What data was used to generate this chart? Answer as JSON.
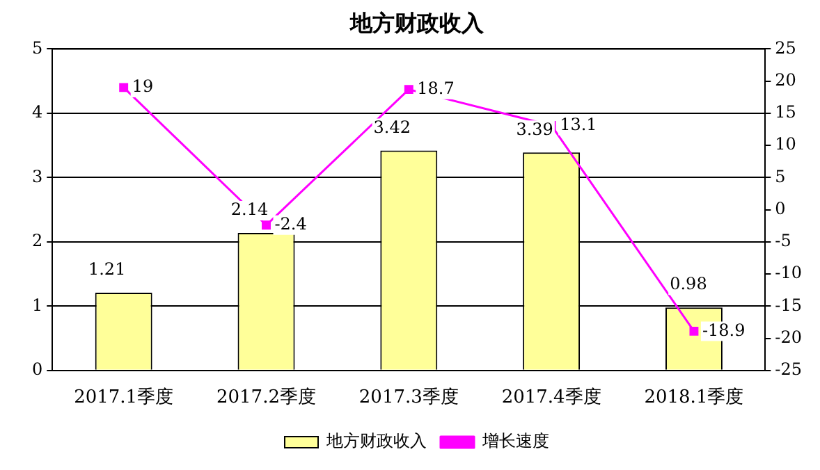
{
  "chart_data": {
    "type": "bar",
    "title": "地方财政收入",
    "categories": [
      "2017.1季度",
      "2017.2季度",
      "2017.3季度",
      "2017.4季度",
      "2018.1季度"
    ],
    "series": [
      {
        "name": "地方财政收入",
        "color": "#ffff99",
        "values": [
          1.21,
          2.14,
          3.42,
          3.39,
          0.98
        ]
      },
      {
        "name": "增长速度",
        "type": "line",
        "axis": "y2",
        "color": "#ff00ff",
        "values": [
          19,
          -2.4,
          18.7,
          13.1,
          -18.9
        ]
      }
    ],
    "ylim": [
      0,
      5
    ],
    "yticks": [
      0,
      1,
      2,
      3,
      4,
      5
    ],
    "y2lim": [
      -25,
      25
    ],
    "y2ticks": [
      -25,
      -20,
      -15,
      -10,
      -5,
      0,
      5,
      10,
      15,
      20,
      25
    ],
    "grid": "y",
    "legend": "bottom",
    "marker": "square",
    "line_style": "solid",
    "data_labels": true
  }
}
